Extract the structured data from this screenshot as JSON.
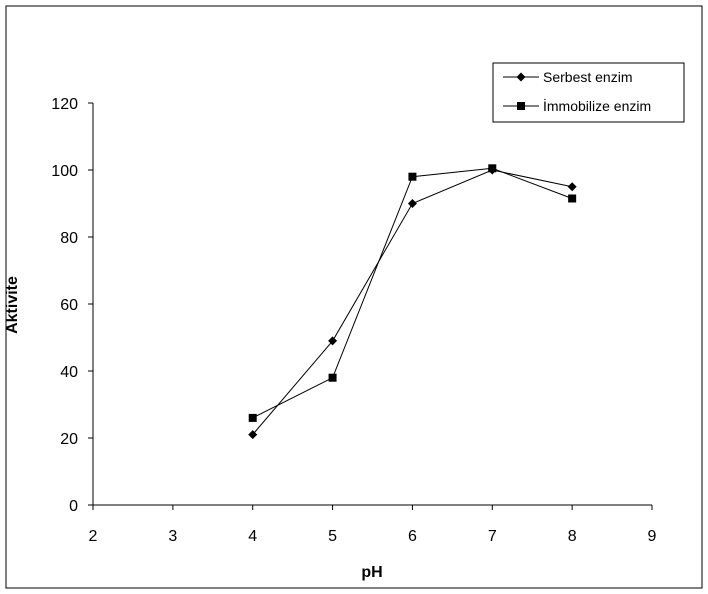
{
  "chart_data": {
    "type": "line",
    "title": "",
    "xlabel": "pH",
    "ylabel": "Aktivite",
    "xlim": [
      2,
      9
    ],
    "ylim": [
      0,
      120
    ],
    "xticks": [
      "2",
      "3",
      "4",
      "5",
      "6",
      "7",
      "8",
      "9"
    ],
    "yticks": [
      "0",
      "20",
      "40",
      "60",
      "80",
      "100",
      "120"
    ],
    "grid": false,
    "legend": "top-right",
    "series": [
      {
        "name": "Serbest enzim",
        "marker": "diamond",
        "color": "#000000",
        "x": [
          4,
          5,
          6,
          7,
          8
        ],
        "y": [
          21,
          49,
          90,
          100,
          95
        ]
      },
      {
        "name": "İmmobilize enzim",
        "marker": "square",
        "color": "#000000",
        "x": [
          4,
          5,
          6,
          7,
          8
        ],
        "y": [
          26,
          38,
          98,
          100.5,
          91.5
        ]
      }
    ]
  }
}
